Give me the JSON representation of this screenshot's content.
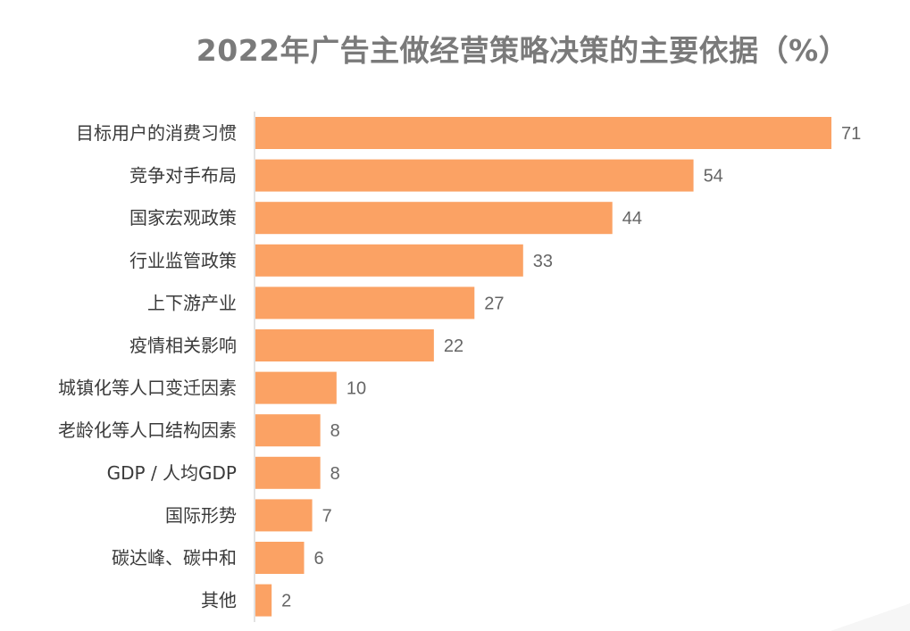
{
  "chart_data": {
    "type": "bar",
    "orientation": "horizontal",
    "title": "2022年广告主做经营策略决策的主要依据（%）",
    "categories": [
      "目标用户的消费习惯",
      "竞争对手布局",
      "国家宏观政策",
      "行业监管政策",
      "上下游产业",
      "疫情相关影响",
      "城镇化等人口变迁因素",
      "老龄化等人口结构因素",
      "GDP / 人均GDP",
      "国际形势",
      "碳达峰、碳中和",
      "其他"
    ],
    "values": [
      71,
      54,
      44,
      33,
      27,
      22,
      10,
      8,
      8,
      7,
      6,
      2
    ],
    "xlabel": "",
    "ylabel": "",
    "xlim": [
      0,
      71
    ],
    "grid": false,
    "data_labels": true,
    "bar_color": "#FBA264",
    "axis_color": "#d9d9d9"
  }
}
